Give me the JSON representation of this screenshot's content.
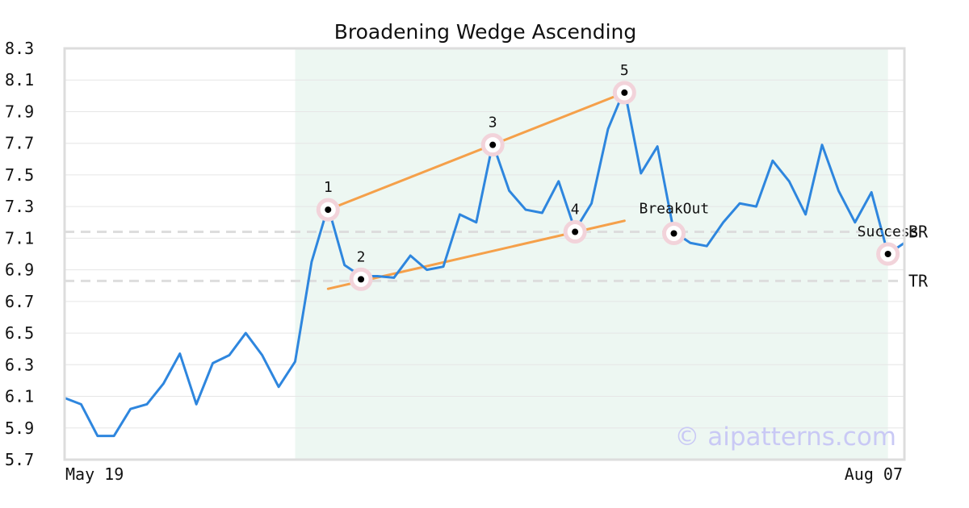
{
  "chart_data": {
    "type": "line",
    "title": "Broadening Wedge Ascending",
    "watermark": "© aipatterns.com",
    "colors": {
      "line": "#2e86de",
      "trendline": "#f5a04a",
      "highlight": "#edf7f2",
      "marker_halo": "#f2d3da",
      "level": "#dddddd",
      "grid": "#e6e6e6",
      "frame": "#dddddd",
      "watermark": "#c9c9f5"
    },
    "ylim": [
      5.7,
      8.3
    ],
    "yticks": [
      "5.7",
      "5.9",
      "6.1",
      "6.3",
      "6.5",
      "6.7",
      "6.9",
      "7.1",
      "7.3",
      "7.5",
      "7.7",
      "7.9",
      "8.1",
      "8.3"
    ],
    "xtick_labels": [
      "May 19",
      "Aug 07"
    ],
    "grid": "horizontal",
    "series": [
      {
        "values": [
          6.09,
          6.05,
          5.85,
          5.85,
          6.02,
          6.05,
          6.18,
          6.37,
          6.05,
          6.31,
          6.36,
          6.5,
          6.36,
          6.16,
          6.32,
          6.95,
          7.3,
          6.93,
          6.86,
          6.86,
          6.85,
          6.99,
          6.9,
          6.92,
          7.25,
          7.2,
          7.7,
          7.4,
          7.28,
          7.26,
          7.46,
          7.15,
          7.32,
          7.79,
          8.04,
          7.51,
          7.68,
          7.14,
          7.07,
          7.05,
          7.2,
          7.32,
          7.3,
          7.59,
          7.46,
          7.25,
          7.69,
          7.4,
          7.2,
          7.39,
          7.0,
          7.07
        ]
      }
    ],
    "highlight_range": [
      14,
      50
    ],
    "levels": [
      {
        "label": "BR",
        "value": 7.14
      },
      {
        "label": "TR",
        "value": 6.83
      }
    ],
    "trendlines": [
      {
        "from": [
          16,
          7.28
        ],
        "to": [
          34,
          8.02
        ]
      },
      {
        "from": [
          16,
          6.78
        ],
        "to": [
          34,
          7.21
        ]
      }
    ],
    "points": [
      {
        "label": "1",
        "index": 16,
        "value": 7.28,
        "label_side": "above"
      },
      {
        "label": "2",
        "index": 18,
        "value": 6.84,
        "label_side": "above"
      },
      {
        "label": "3",
        "index": 26,
        "value": 7.69,
        "label_side": "above"
      },
      {
        "label": "4",
        "index": 31,
        "value": 7.14,
        "label_side": "above"
      },
      {
        "label": "5",
        "index": 34,
        "value": 8.02,
        "label_side": "above"
      },
      {
        "label": "BreakOut",
        "index": 37,
        "value": 7.13,
        "label_side": "above-right"
      },
      {
        "label": "Success",
        "index": 50,
        "value": 7.0,
        "label_side": "above"
      }
    ]
  }
}
